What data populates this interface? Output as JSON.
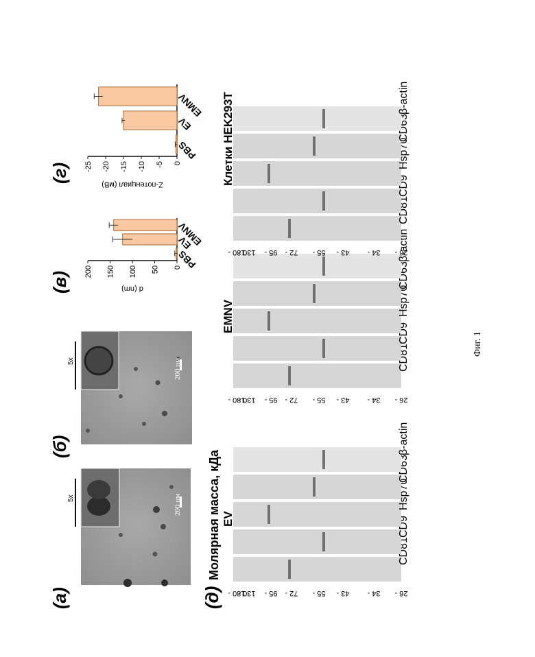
{
  "panel_labels": {
    "a": "(а)",
    "b": "(б)",
    "v": "(в)",
    "g": "(г)",
    "d": "(д)"
  },
  "micrographs": {
    "inset_zoom": "5x",
    "scale_text": "200 нм"
  },
  "chart_data": [
    {
      "type": "bar",
      "panel": "(в)",
      "categories": [
        "PBS",
        "EV",
        "EMNV"
      ],
      "values": [
        2,
        122,
        142
      ],
      "errors": [
        3,
        22,
        10
      ],
      "ylabel": "d (nm)",
      "ylim": [
        0,
        200
      ],
      "yticks": [
        0,
        50,
        100,
        150,
        200
      ],
      "bar_color": "#f8c8a2",
      "bar_edge": "#b06a30"
    },
    {
      "type": "bar",
      "panel": "(г)",
      "categories": [
        "PBS",
        "EV",
        "EMNV"
      ],
      "values": [
        -0.3,
        -15,
        -22
      ],
      "errors": [
        0.2,
        0.4,
        1.2
      ],
      "ylabel": "Z-потенциал (мВ)",
      "ylim": [
        -25,
        0
      ],
      "yticks": [
        0,
        -5,
        -10,
        -15,
        -20,
        -25
      ],
      "bar_color": "#f8c8a2",
      "bar_edge": "#b06a30"
    }
  ],
  "western": {
    "ylabel": "Молярная масса, кДа",
    "markers": [
      "180",
      "130",
      "95",
      "72",
      "55",
      "43",
      "34",
      "26"
    ],
    "groups": [
      {
        "title": "EV",
        "blots": [
          "CD81",
          "CD9",
          "Hsp70",
          "CD63",
          "β-actin"
        ]
      },
      {
        "title": "EMNV",
        "blots": [
          "CD81",
          "CD9",
          "Hsp70",
          "CD63",
          "β-actin"
        ]
      },
      {
        "title": "Клетки HEK293T",
        "blots": [
          "CD81",
          "CD9",
          "Hsp70",
          "CD63",
          "β-actin"
        ]
      }
    ]
  },
  "caption": "Фиг. 1"
}
